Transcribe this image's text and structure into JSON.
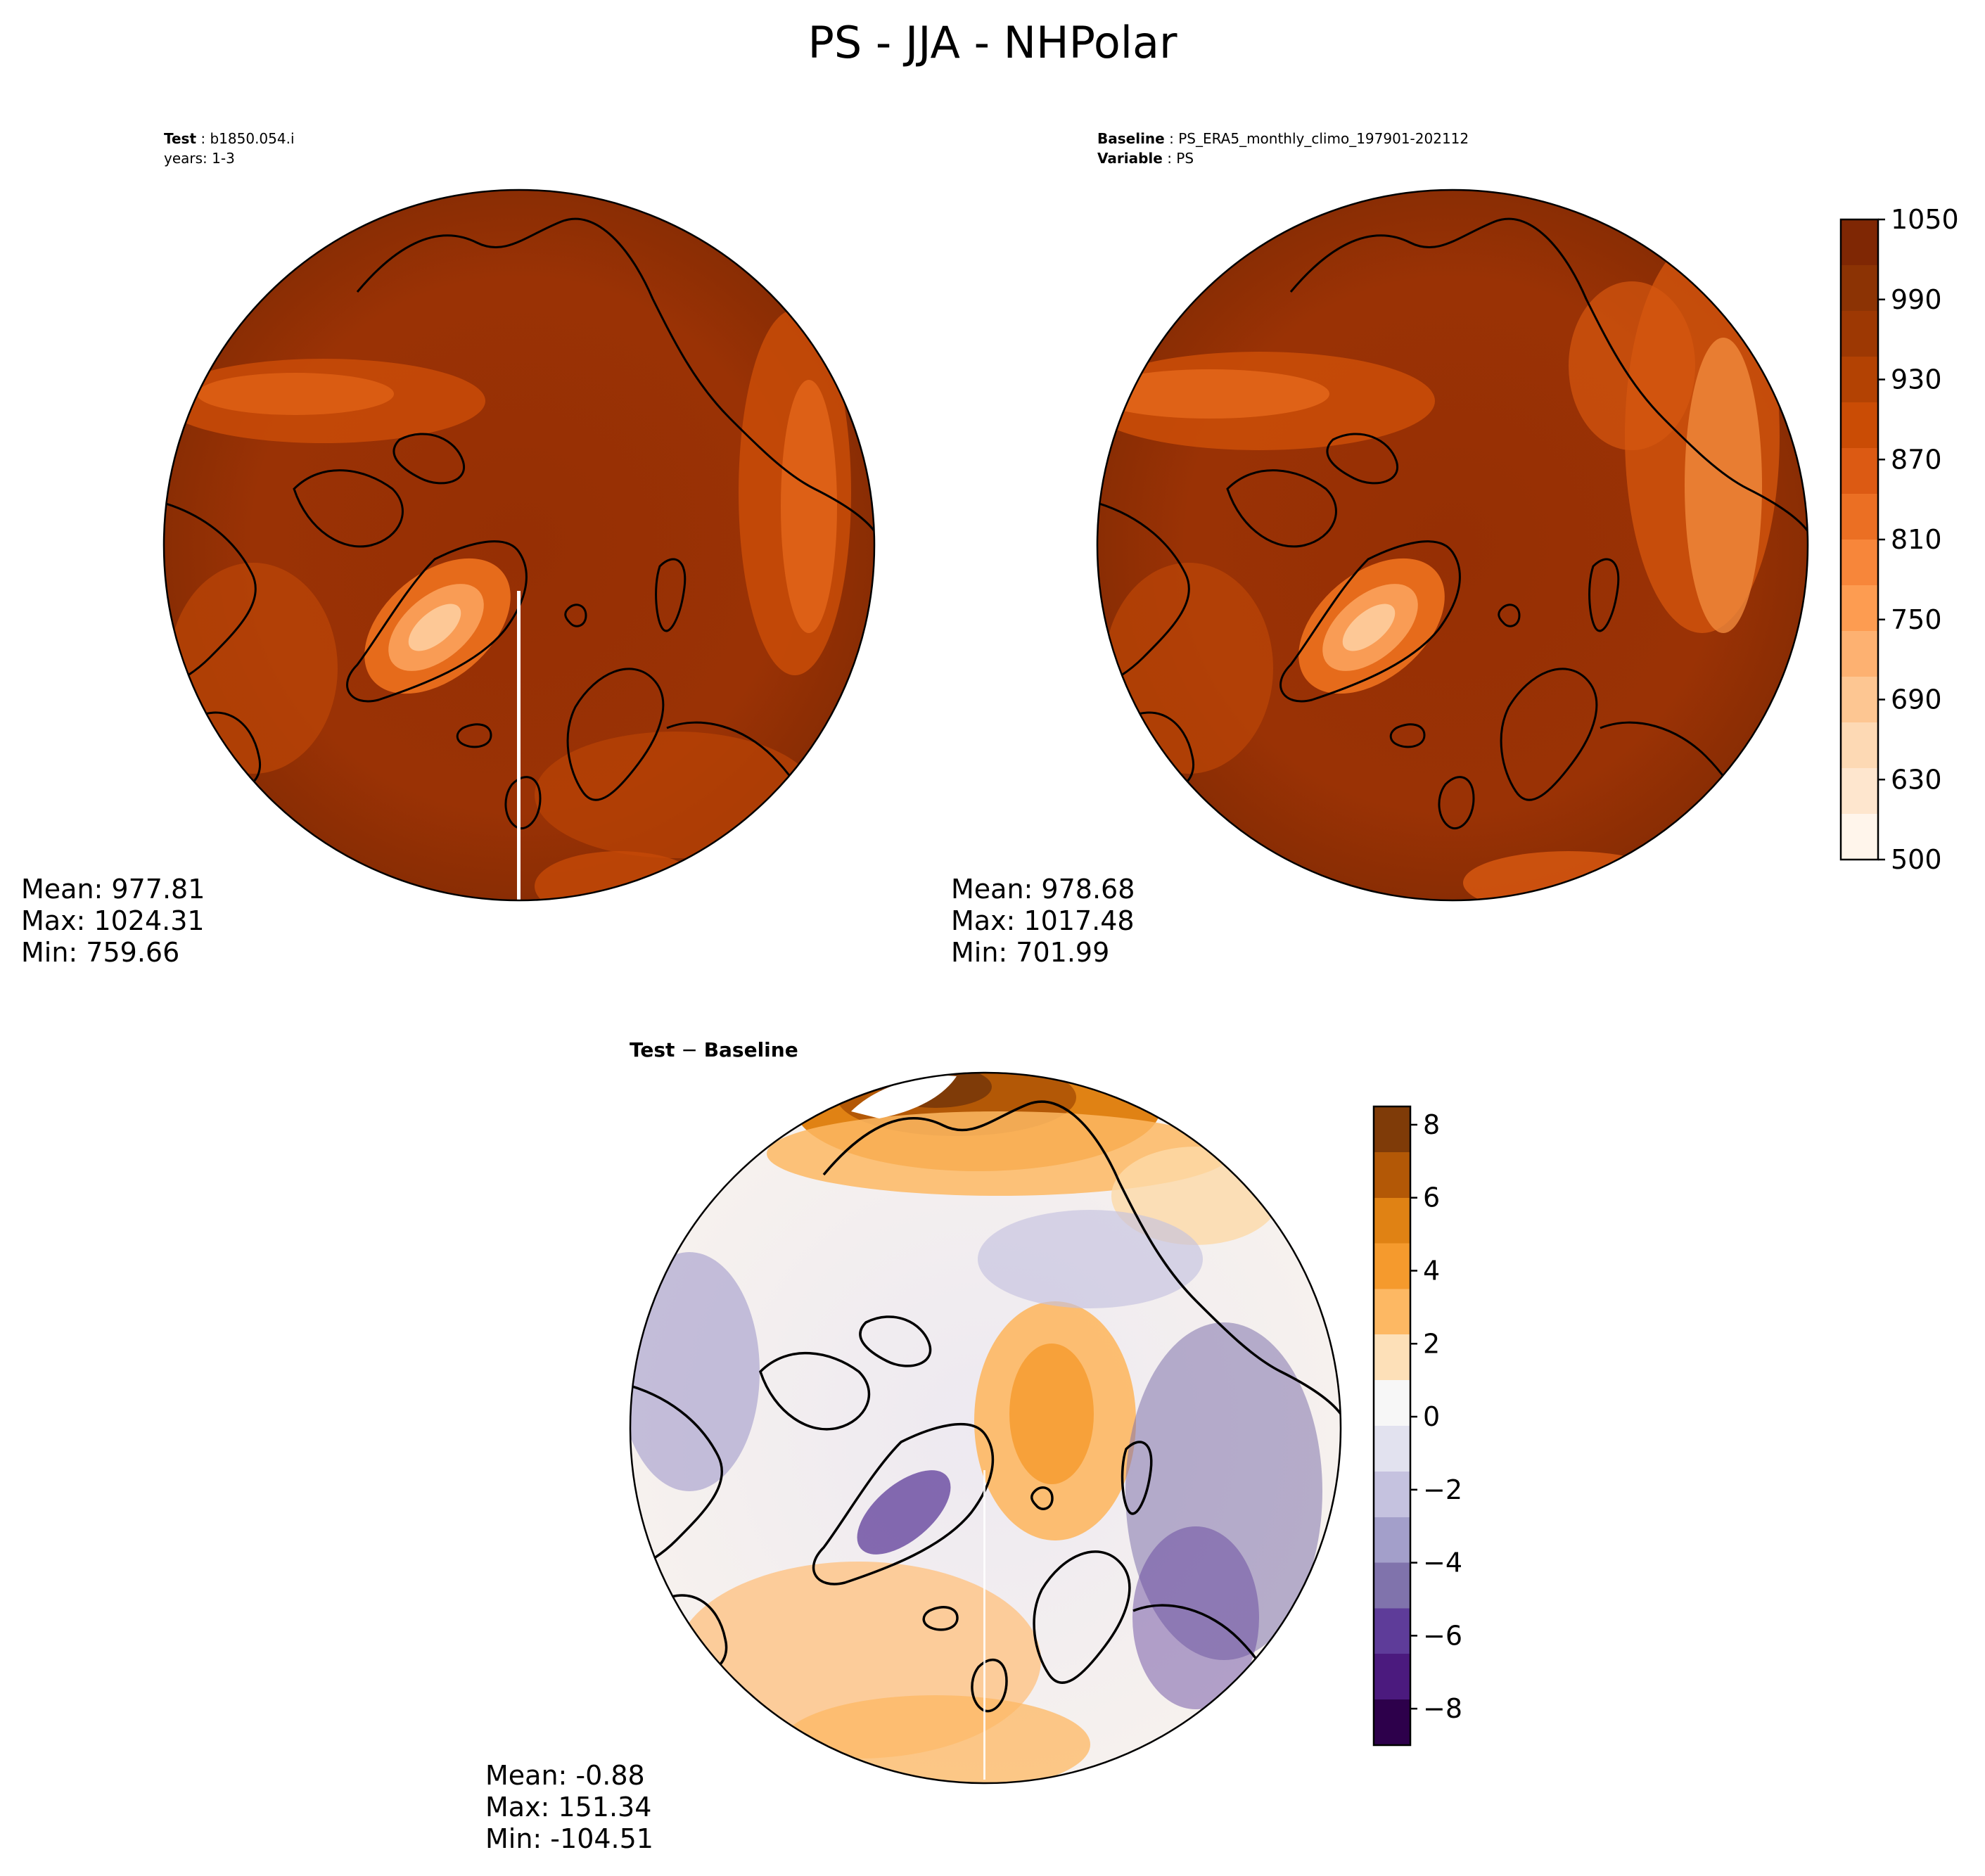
{
  "figure": {
    "title": "PS - JJA - NHPolar"
  },
  "panels": {
    "test": {
      "header_label": "Test",
      "header_value": "b1850.054.i",
      "header_line2": "years: 1-3",
      "stats": {
        "mean": "Mean: 977.81",
        "max": "Max: 1024.31",
        "min": "Min: 759.66"
      }
    },
    "baseline": {
      "header_label": "Baseline",
      "header_value": "PS_ERA5_monthly_climo_197901-202112",
      "header_label2": "Variable",
      "header_value2": "PS",
      "stats": {
        "mean": "Mean: 978.68",
        "max": "Max: 1017.48",
        "min": "Min: 701.99"
      }
    },
    "diff": {
      "header_label_a": "Test",
      "header_sep": " − ",
      "header_label_b": "Baseline",
      "stats": {
        "mean": "Mean: -0.88",
        "max": "Max: 151.34",
        "min": "Min: -104.51"
      }
    }
  },
  "chart_data": [
    {
      "type": "heatmap",
      "name": "test",
      "projection": "north polar stereographic",
      "variable": "PS",
      "stats": {
        "mean": 977.81,
        "max": 1024.31,
        "min": 759.66
      }
    },
    {
      "type": "heatmap",
      "name": "baseline",
      "projection": "north polar stereographic",
      "variable": "PS",
      "stats": {
        "mean": 978.68,
        "max": 1017.48,
        "min": 701.99
      }
    },
    {
      "type": "heatmap",
      "name": "test-minus-baseline",
      "projection": "north polar stereographic",
      "variable": "PS",
      "stats": {
        "mean": -0.88,
        "max": 151.34,
        "min": -104.51
      }
    }
  ],
  "colorbars": {
    "main": {
      "range": [
        500,
        1050
      ],
      "ticks": [
        "500",
        "630",
        "690",
        "750",
        "810",
        "870",
        "930",
        "990",
        "1050"
      ],
      "tick_values": [
        500,
        630,
        690,
        750,
        810,
        870,
        930,
        990,
        1050
      ],
      "colors_bottom_to_top": [
        "#fff5eb",
        "#fee6ce",
        "#fdd9b4",
        "#fdc692",
        "#fdb171",
        "#fd9c51",
        "#f7863a",
        "#eb6f23",
        "#dc5a13",
        "#ca4c05",
        "#b34203",
        "#9d3803",
        "#8c3304",
        "#7f2704"
      ]
    },
    "diff": {
      "range": [
        -9,
        8.5
      ],
      "ticks": [
        "−8",
        "−6",
        "−4",
        "−2",
        "0",
        "2",
        "4",
        "6",
        "8"
      ],
      "tick_values": [
        -8,
        -6,
        -4,
        -2,
        0,
        2,
        4,
        6,
        8
      ],
      "colors_bottom_to_top": [
        "#2d004b",
        "#4b1a7e",
        "#5e3c99",
        "#8073ac",
        "#a39fca",
        "#c5c2df",
        "#e2e2ef",
        "#f7f7f7",
        "#fde0b8",
        "#fdb863",
        "#f59a2d",
        "#e08214",
        "#b35806",
        "#7f3b08"
      ]
    }
  },
  "colors": {
    "land_outline": "#000000",
    "ocean_main": "#973005",
    "ocean_deep": "#8a2d04",
    "diff_neutral": "#f4f1f2"
  }
}
